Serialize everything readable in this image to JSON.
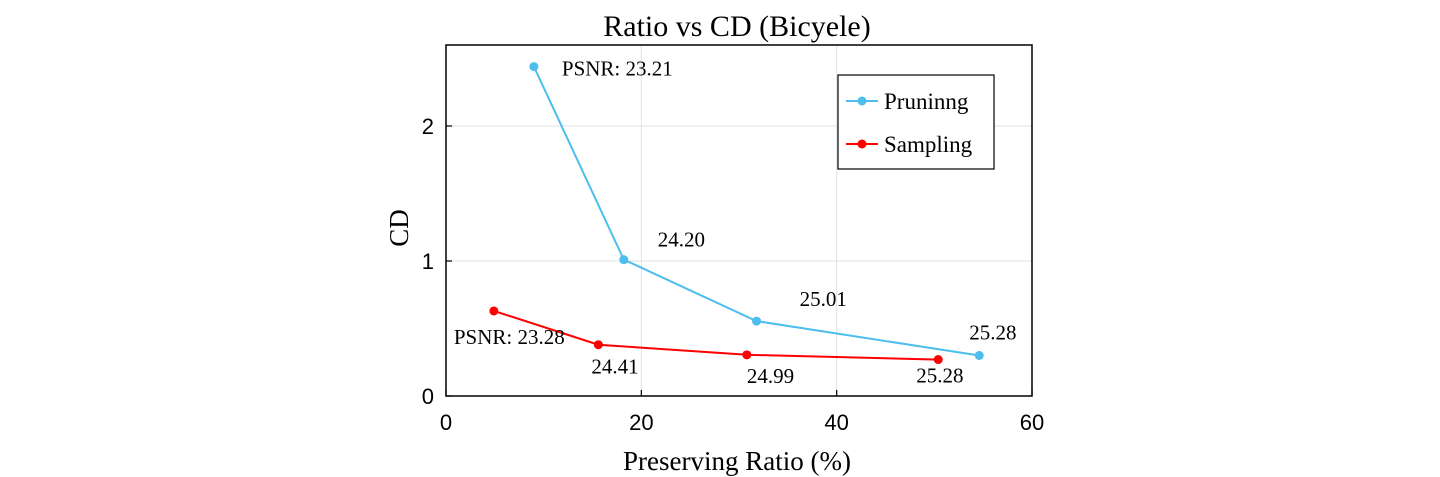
{
  "chart_data": {
    "type": "line",
    "title": "Ratio vs CD (Bicyele)",
    "xlabel": "Preserving Ratio (%)",
    "ylabel": "CD",
    "xlim": [
      0,
      60
    ],
    "ylim": [
      0,
      2.6
    ],
    "xticks": [
      0,
      20,
      40,
      60
    ],
    "yticks": [
      0,
      1,
      2
    ],
    "grid": true,
    "legend_position": "top-right",
    "series": [
      {
        "name": "Pruninng",
        "color": "#4DBEEE",
        "x": [
          9,
          18.2,
          31.8,
          54.6
        ],
        "y": [
          2.44,
          1.01,
          0.555,
          0.3
        ],
        "labels": [
          "PSNR: 23.21",
          "24.20",
          "25.01",
          "25.28"
        ]
      },
      {
        "name": "Sampling",
        "color": "#FF0000",
        "x": [
          4.9,
          15.6,
          30.8,
          50.4
        ],
        "y": [
          0.63,
          0.38,
          0.305,
          0.27
        ],
        "labels": [
          "PSNR: 23.28",
          "24.41",
          "24.99",
          "25.28"
        ]
      }
    ]
  }
}
